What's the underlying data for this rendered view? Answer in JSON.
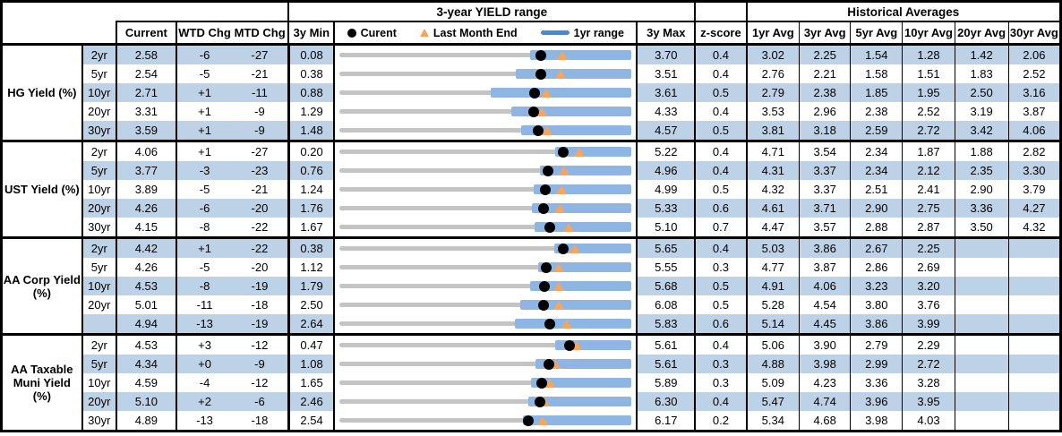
{
  "header": {
    "range_title": "3-year YIELD range",
    "historical_title": "Historical Averages",
    "col_current": "Current",
    "col_wtd": "WTD Chg",
    "col_mtd": "MTD Chg",
    "col_min": "3y Min",
    "col_max": "3y Max",
    "col_z": "z-score",
    "avg_cols": [
      "1yr Avg",
      "3yr Avg",
      "5yr Avg",
      "10yr Avg",
      "20yr Avg",
      "30yr Avg"
    ],
    "legend": {
      "current": "Curent",
      "last_month": "Last Month End",
      "range_1yr": "1yr range"
    }
  },
  "colors": {
    "stripe": "#BDD1E7",
    "bar_1yr_range": "#8FB6E3",
    "track_gray": "#C4C4C4",
    "triangle_orange": "#F7A45C",
    "legend_line_blue": "#5585C2",
    "border": "#000000"
  },
  "chart_data": {
    "type": "table",
    "note": "Each row also depicts a bullet-range chart: gray track spans 3y min..3y max; blue bar is 1yr range (low..3y max); black dot = current; orange triangle = last month end.",
    "sections": [
      {
        "label": "HG Yield (%)",
        "rows": [
          {
            "tenor": "2yr",
            "current": "2.58",
            "wtd": "-6",
            "mtd": "-27",
            "min": "0.08",
            "max": "3.70",
            "z": "0.4",
            "avgs": [
              "3.02",
              "2.25",
              "1.54",
              "1.28",
              "1.42",
              "2.06"
            ],
            "range": {
              "min": 0.08,
              "max": 3.7,
              "bar_low": 2.45,
              "current": 2.58,
              "last_month": 2.85
            }
          },
          {
            "tenor": "5yr",
            "current": "2.54",
            "wtd": "-5",
            "mtd": "-21",
            "min": "0.38",
            "max": "3.51",
            "z": "0.4",
            "avgs": [
              "2.76",
              "2.21",
              "1.58",
              "1.51",
              "1.83",
              "2.52"
            ],
            "range": {
              "min": 0.38,
              "max": 3.51,
              "bar_low": 2.27,
              "current": 2.54,
              "last_month": 2.75
            }
          },
          {
            "tenor": "10yr",
            "current": "2.71",
            "wtd": "+1",
            "mtd": "-11",
            "min": "0.88",
            "max": "3.61",
            "z": "0.5",
            "avgs": [
              "2.79",
              "2.38",
              "1.85",
              "1.95",
              "2.50",
              "3.16"
            ],
            "range": {
              "min": 0.88,
              "max": 3.61,
              "bar_low": 2.29,
              "current": 2.71,
              "last_month": 2.82
            }
          },
          {
            "tenor": "20yr",
            "current": "3.31",
            "wtd": "+1",
            "mtd": "-9",
            "min": "1.29",
            "max": "4.33",
            "z": "0.4",
            "avgs": [
              "3.53",
              "2.96",
              "2.38",
              "2.52",
              "3.19",
              "3.87"
            ],
            "range": {
              "min": 1.29,
              "max": 4.33,
              "bar_low": 3.08,
              "current": 3.31,
              "last_month": 3.4
            }
          },
          {
            "tenor": "30yr",
            "current": "3.59",
            "wtd": "+1",
            "mtd": "-9",
            "min": "1.48",
            "max": "4.57",
            "z": "0.5",
            "avgs": [
              "3.81",
              "3.18",
              "2.59",
              "2.72",
              "3.42",
              "4.06"
            ],
            "range": {
              "min": 1.48,
              "max": 4.57,
              "bar_low": 3.4,
              "current": 3.59,
              "last_month": 3.68
            }
          }
        ]
      },
      {
        "label": "UST Yield (%)",
        "rows": [
          {
            "tenor": "2yr",
            "current": "4.06",
            "wtd": "+1",
            "mtd": "-27",
            "min": "0.20",
            "max": "5.22",
            "z": "0.4",
            "avgs": [
              "4.71",
              "3.54",
              "2.34",
              "1.87",
              "1.88",
              "2.82"
            ],
            "range": {
              "min": 0.2,
              "max": 5.22,
              "bar_low": 3.91,
              "current": 4.06,
              "last_month": 4.33
            }
          },
          {
            "tenor": "5yr",
            "current": "3.77",
            "wtd": "-3",
            "mtd": "-23",
            "min": "0.76",
            "max": "4.96",
            "z": "0.4",
            "avgs": [
              "4.31",
              "3.37",
              "2.34",
              "2.12",
              "2.35",
              "3.30"
            ],
            "range": {
              "min": 0.76,
              "max": 4.96,
              "bar_low": 3.65,
              "current": 3.77,
              "last_month": 4.0
            }
          },
          {
            "tenor": "10yr",
            "current": "3.89",
            "wtd": "-5",
            "mtd": "-21",
            "min": "1.24",
            "max": "4.99",
            "z": "0.5",
            "avgs": [
              "4.32",
              "3.37",
              "2.51",
              "2.41",
              "2.90",
              "3.79"
            ],
            "range": {
              "min": 1.24,
              "max": 4.99,
              "bar_low": 3.74,
              "current": 3.89,
              "last_month": 4.1
            }
          },
          {
            "tenor": "20yr",
            "current": "4.26",
            "wtd": "-6",
            "mtd": "-20",
            "min": "1.76",
            "max": "5.33",
            "z": "0.6",
            "avgs": [
              "4.61",
              "3.71",
              "2.90",
              "2.75",
              "3.36",
              "4.27"
            ],
            "range": {
              "min": 1.76,
              "max": 5.33,
              "bar_low": 4.11,
              "current": 4.26,
              "last_month": 4.46
            }
          },
          {
            "tenor": "30yr",
            "current": "4.15",
            "wtd": "-8",
            "mtd": "-22",
            "min": "1.67",
            "max": "5.10",
            "z": "0.7",
            "avgs": [
              "4.47",
              "3.57",
              "2.88",
              "2.87",
              "3.50",
              "4.32"
            ],
            "range": {
              "min": 1.67,
              "max": 5.1,
              "bar_low": 3.96,
              "current": 4.15,
              "last_month": 4.37
            }
          }
        ]
      },
      {
        "label": "AA Corp Yield (%)",
        "rows": [
          {
            "tenor": "2yr",
            "current": "4.42",
            "wtd": "+1",
            "mtd": "-22",
            "min": "0.38",
            "max": "5.65",
            "z": "0.4",
            "avgs": [
              "5.03",
              "3.86",
              "2.67",
              "2.25",
              "",
              ""
            ],
            "range": {
              "min": 0.38,
              "max": 5.65,
              "bar_low": 4.26,
              "current": 4.42,
              "last_month": 4.64
            }
          },
          {
            "tenor": "5yr",
            "current": "4.26",
            "wtd": "-5",
            "mtd": "-20",
            "min": "1.12",
            "max": "5.55",
            "z": "0.3",
            "avgs": [
              "4.77",
              "3.87",
              "2.86",
              "2.69",
              "",
              ""
            ],
            "range": {
              "min": 1.12,
              "max": 5.55,
              "bar_low": 4.14,
              "current": 4.26,
              "last_month": 4.46
            }
          },
          {
            "tenor": "10yr",
            "current": "4.53",
            "wtd": "-8",
            "mtd": "-19",
            "min": "1.79",
            "max": "5.68",
            "z": "0.5",
            "avgs": [
              "4.91",
              "4.06",
              "3.23",
              "3.20",
              "",
              ""
            ],
            "range": {
              "min": 1.79,
              "max": 5.68,
              "bar_low": 4.33,
              "current": 4.53,
              "last_month": 4.72
            }
          },
          {
            "tenor": "20yr",
            "current": "5.01",
            "wtd": "-11",
            "mtd": "-18",
            "min": "2.50",
            "max": "6.08",
            "z": "0.5",
            "avgs": [
              "5.28",
              "4.54",
              "3.80",
              "3.76",
              "",
              ""
            ],
            "range": {
              "min": 2.5,
              "max": 6.08,
              "bar_low": 4.72,
              "current": 5.01,
              "last_month": 5.19
            }
          },
          {
            "tenor": "",
            "current": "4.94",
            "wtd": "-13",
            "mtd": "-19",
            "min": "2.64",
            "max": "5.83",
            "z": "0.6",
            "avgs": [
              "5.14",
              "4.45",
              "3.86",
              "3.99",
              "",
              ""
            ],
            "range": {
              "min": 2.64,
              "max": 5.83,
              "bar_low": 4.56,
              "current": 4.94,
              "last_month": 5.13
            }
          }
        ]
      },
      {
        "label": "AA Taxable Muni Yield (%)",
        "rows": [
          {
            "tenor": "2yr",
            "current": "4.53",
            "wtd": "+3",
            "mtd": "-12",
            "min": "0.47",
            "max": "5.61",
            "z": "0.4",
            "avgs": [
              "5.06",
              "3.90",
              "2.79",
              "2.29",
              "",
              ""
            ],
            "range": {
              "min": 0.47,
              "max": 5.61,
              "bar_low": 4.27,
              "current": 4.53,
              "last_month": 4.65
            }
          },
          {
            "tenor": "5yr",
            "current": "4.34",
            "wtd": "+0",
            "mtd": "-9",
            "min": "1.08",
            "max": "5.61",
            "z": "0.3",
            "avgs": [
              "4.88",
              "3.98",
              "2.99",
              "2.72",
              "",
              ""
            ],
            "range": {
              "min": 1.08,
              "max": 5.61,
              "bar_low": 4.12,
              "current": 4.34,
              "last_month": 4.43
            }
          },
          {
            "tenor": "10yr",
            "current": "4.59",
            "wtd": "-4",
            "mtd": "-12",
            "min": "1.65",
            "max": "5.89",
            "z": "0.3",
            "avgs": [
              "5.09",
              "4.23",
              "3.36",
              "3.28",
              "",
              ""
            ],
            "range": {
              "min": 1.65,
              "max": 5.89,
              "bar_low": 4.44,
              "current": 4.59,
              "last_month": 4.71
            }
          },
          {
            "tenor": "20yr",
            "current": "5.10",
            "wtd": "+2",
            "mtd": "-6",
            "min": "2.46",
            "max": "6.30",
            "z": "0.4",
            "avgs": [
              "5.47",
              "4.74",
              "3.96",
              "3.95",
              "",
              ""
            ],
            "range": {
              "min": 2.46,
              "max": 6.3,
              "bar_low": 4.95,
              "current": 5.1,
              "last_month": 5.16
            }
          },
          {
            "tenor": "30yr",
            "current": "4.89",
            "wtd": "-13",
            "mtd": "-18",
            "min": "2.54",
            "max": "6.17",
            "z": "0.2",
            "avgs": [
              "5.34",
              "4.68",
              "3.98",
              "4.03",
              "",
              ""
            ],
            "range": {
              "min": 2.54,
              "max": 6.17,
              "bar_low": 4.82,
              "current": 4.89,
              "last_month": 5.07
            }
          }
        ]
      }
    ]
  }
}
